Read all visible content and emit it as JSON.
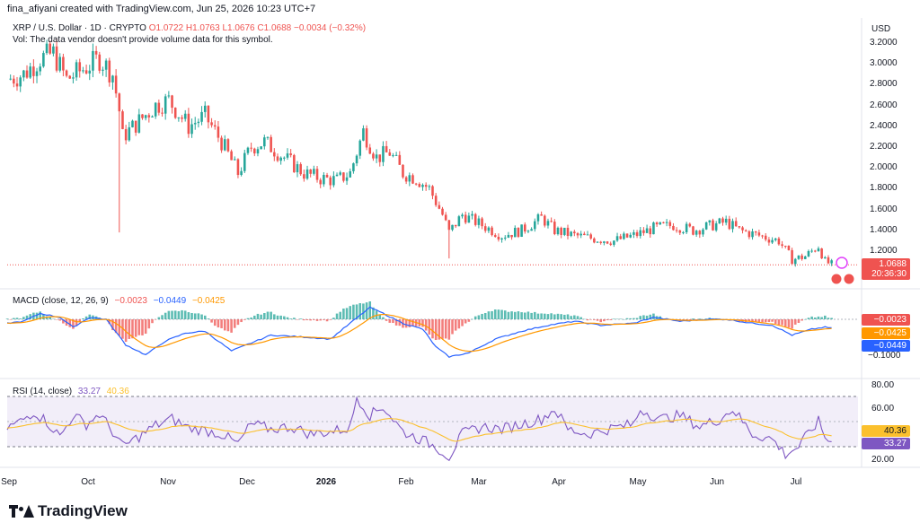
{
  "header": {
    "created_by": "fina_afiyani created with TradingView.com, Jun 25, 2026 10:23 UTC+7",
    "symbol": "XRP / U.S. Dollar · 1D · CRYPTO",
    "o": "O1.0722",
    "h": "H1.0763",
    "l": "L1.0676",
    "c": "C1.0688",
    "change": "−0.0034 (−0.32%)",
    "vol_note": "Vol: The data vendor doesn't provide volume data for this symbol.",
    "currency": "USD"
  },
  "price_tag": {
    "value": "1.0688",
    "countdown": "20:36:30"
  },
  "macd_legend": {
    "label": "MACD (close, 12, 26, 9)",
    "hist": "−0.0023",
    "macd": "−0.0449",
    "signal": "−0.0425"
  },
  "macd_tags": {
    "hist": "−0.0023",
    "signal": "−0.0425",
    "macd": "−0.0449"
  },
  "rsi_legend": {
    "label": "RSI (14, close)",
    "rsi": "33.27",
    "ma": "40.36"
  },
  "rsi_tags": {
    "ma": "40.36",
    "rsi": "33.27"
  },
  "brand": "TradingView",
  "colors": {
    "up": "#26a69a",
    "down": "#ef5350",
    "macd": "#2962ff",
    "signal": "#ff9800",
    "rsi": "#7e57c2",
    "rsi_ma": "#fbc02d",
    "price_tag": "#ef5350"
  },
  "chart_data": {
    "type": "candlestick",
    "price_axis": {
      "ticks": [
        "3.2000",
        "3.0000",
        "2.8000",
        "2.6000",
        "2.4000",
        "2.2000",
        "2.0000",
        "1.8000",
        "1.6000",
        "1.4000",
        "1.2000"
      ],
      "range": [
        1.02,
        3.28
      ]
    },
    "macd_axis": {
      "ticks": [
        "−0.1000"
      ]
    },
    "rsi_axis": {
      "ticks": [
        "80.00",
        "60.00",
        "20.00"
      ],
      "bands": [
        70,
        30
      ]
    },
    "months": [
      "Sep",
      "Oct",
      "Nov",
      "Dec",
      "2026",
      "Feb",
      "Mar",
      "Apr",
      "May",
      "Jun",
      "Jul"
    ],
    "waypoints": [
      [
        0,
        2.85
      ],
      [
        5,
        2.9
      ],
      [
        10,
        3.05
      ],
      [
        14,
        3.1
      ],
      [
        18,
        2.85
      ],
      [
        23,
        2.95
      ],
      [
        28,
        3.05
      ],
      [
        32,
        2.9
      ],
      [
        34,
        2.55
      ],
      [
        35,
        2.3
      ],
      [
        40,
        2.45
      ],
      [
        45,
        2.6
      ],
      [
        49,
        2.65
      ],
      [
        55,
        2.4
      ],
      [
        60,
        2.5
      ],
      [
        65,
        2.25
      ],
      [
        70,
        1.95
      ],
      [
        74,
        2.2
      ],
      [
        78,
        2.25
      ],
      [
        84,
        2.1
      ],
      [
        90,
        1.95
      ],
      [
        95,
        1.9
      ],
      [
        100,
        1.88
      ],
      [
        104,
        1.95
      ],
      [
        108,
        2.35
      ],
      [
        112,
        2.1
      ],
      [
        116,
        2.15
      ],
      [
        120,
        1.95
      ],
      [
        124,
        1.9
      ],
      [
        128,
        1.8
      ],
      [
        132,
        1.55
      ],
      [
        134,
        1.38
      ],
      [
        138,
        1.55
      ],
      [
        144,
        1.45
      ],
      [
        150,
        1.35
      ],
      [
        156,
        1.4
      ],
      [
        162,
        1.52
      ],
      [
        166,
        1.4
      ],
      [
        172,
        1.35
      ],
      [
        178,
        1.32
      ],
      [
        184,
        1.3
      ],
      [
        190,
        1.35
      ],
      [
        196,
        1.42
      ],
      [
        202,
        1.45
      ],
      [
        208,
        1.4
      ],
      [
        214,
        1.45
      ],
      [
        218,
        1.48
      ],
      [
        222,
        1.4
      ],
      [
        228,
        1.35
      ],
      [
        234,
        1.3
      ],
      [
        238,
        1.12
      ],
      [
        242,
        1.15
      ],
      [
        246,
        1.25
      ],
      [
        248,
        1.1
      ],
      [
        250,
        1.07
      ]
    ],
    "macd_points": [
      [
        0,
        -0.02
      ],
      [
        5,
        -0.01
      ],
      [
        10,
        0.03
      ],
      [
        16,
        0.01
      ],
      [
        20,
        -0.04
      ],
      [
        25,
        0.01
      ],
      [
        30,
        0.0
      ],
      [
        36,
        -0.13
      ],
      [
        42,
        -0.18
      ],
      [
        48,
        -0.11
      ],
      [
        54,
        -0.07
      ],
      [
        60,
        -0.06
      ],
      [
        68,
        -0.16
      ],
      [
        74,
        -0.12
      ],
      [
        80,
        -0.08
      ],
      [
        90,
        -0.09
      ],
      [
        98,
        -0.1
      ],
      [
        104,
        -0.02
      ],
      [
        110,
        0.06
      ],
      [
        114,
        0.03
      ],
      [
        120,
        -0.02
      ],
      [
        126,
        -0.05
      ],
      [
        130,
        -0.14
      ],
      [
        134,
        -0.19
      ],
      [
        140,
        -0.17
      ],
      [
        148,
        -0.1
      ],
      [
        156,
        -0.06
      ],
      [
        164,
        -0.03
      ],
      [
        172,
        -0.01
      ],
      [
        180,
        -0.03
      ],
      [
        190,
        -0.02
      ],
      [
        196,
        0.01
      ],
      [
        204,
        -0.01
      ],
      [
        212,
        0.0
      ],
      [
        218,
        0.0
      ],
      [
        226,
        -0.02
      ],
      [
        232,
        -0.03
      ],
      [
        238,
        -0.08
      ],
      [
        244,
        -0.05
      ],
      [
        248,
        -0.04
      ],
      [
        250,
        -0.045
      ]
    ],
    "rsi_points": [
      [
        0,
        45
      ],
      [
        4,
        50
      ],
      [
        8,
        58
      ],
      [
        12,
        50
      ],
      [
        16,
        38
      ],
      [
        20,
        55
      ],
      [
        24,
        48
      ],
      [
        28,
        56
      ],
      [
        32,
        42
      ],
      [
        35,
        30
      ],
      [
        40,
        38
      ],
      [
        45,
        47
      ],
      [
        50,
        52
      ],
      [
        55,
        45
      ],
      [
        60,
        43
      ],
      [
        65,
        40
      ],
      [
        70,
        32
      ],
      [
        74,
        48
      ],
      [
        80,
        44
      ],
      [
        86,
        46
      ],
      [
        92,
        40
      ],
      [
        98,
        42
      ],
      [
        104,
        45
      ],
      [
        106,
        70
      ],
      [
        110,
        55
      ],
      [
        114,
        62
      ],
      [
        120,
        42
      ],
      [
        126,
        35
      ],
      [
        130,
        30
      ],
      [
        134,
        22
      ],
      [
        138,
        40
      ],
      [
        144,
        46
      ],
      [
        150,
        44
      ],
      [
        156,
        48
      ],
      [
        162,
        52
      ],
      [
        166,
        60
      ],
      [
        170,
        44
      ],
      [
        176,
        40
      ],
      [
        184,
        45
      ],
      [
        190,
        48
      ],
      [
        192,
        60
      ],
      [
        198,
        52
      ],
      [
        204,
        55
      ],
      [
        210,
        46
      ],
      [
        216,
        52
      ],
      [
        220,
        60
      ],
      [
        226,
        40
      ],
      [
        232,
        36
      ],
      [
        236,
        24
      ],
      [
        240,
        30
      ],
      [
        244,
        44
      ],
      [
        246,
        50
      ],
      [
        248,
        38
      ],
      [
        250,
        33
      ]
    ]
  }
}
